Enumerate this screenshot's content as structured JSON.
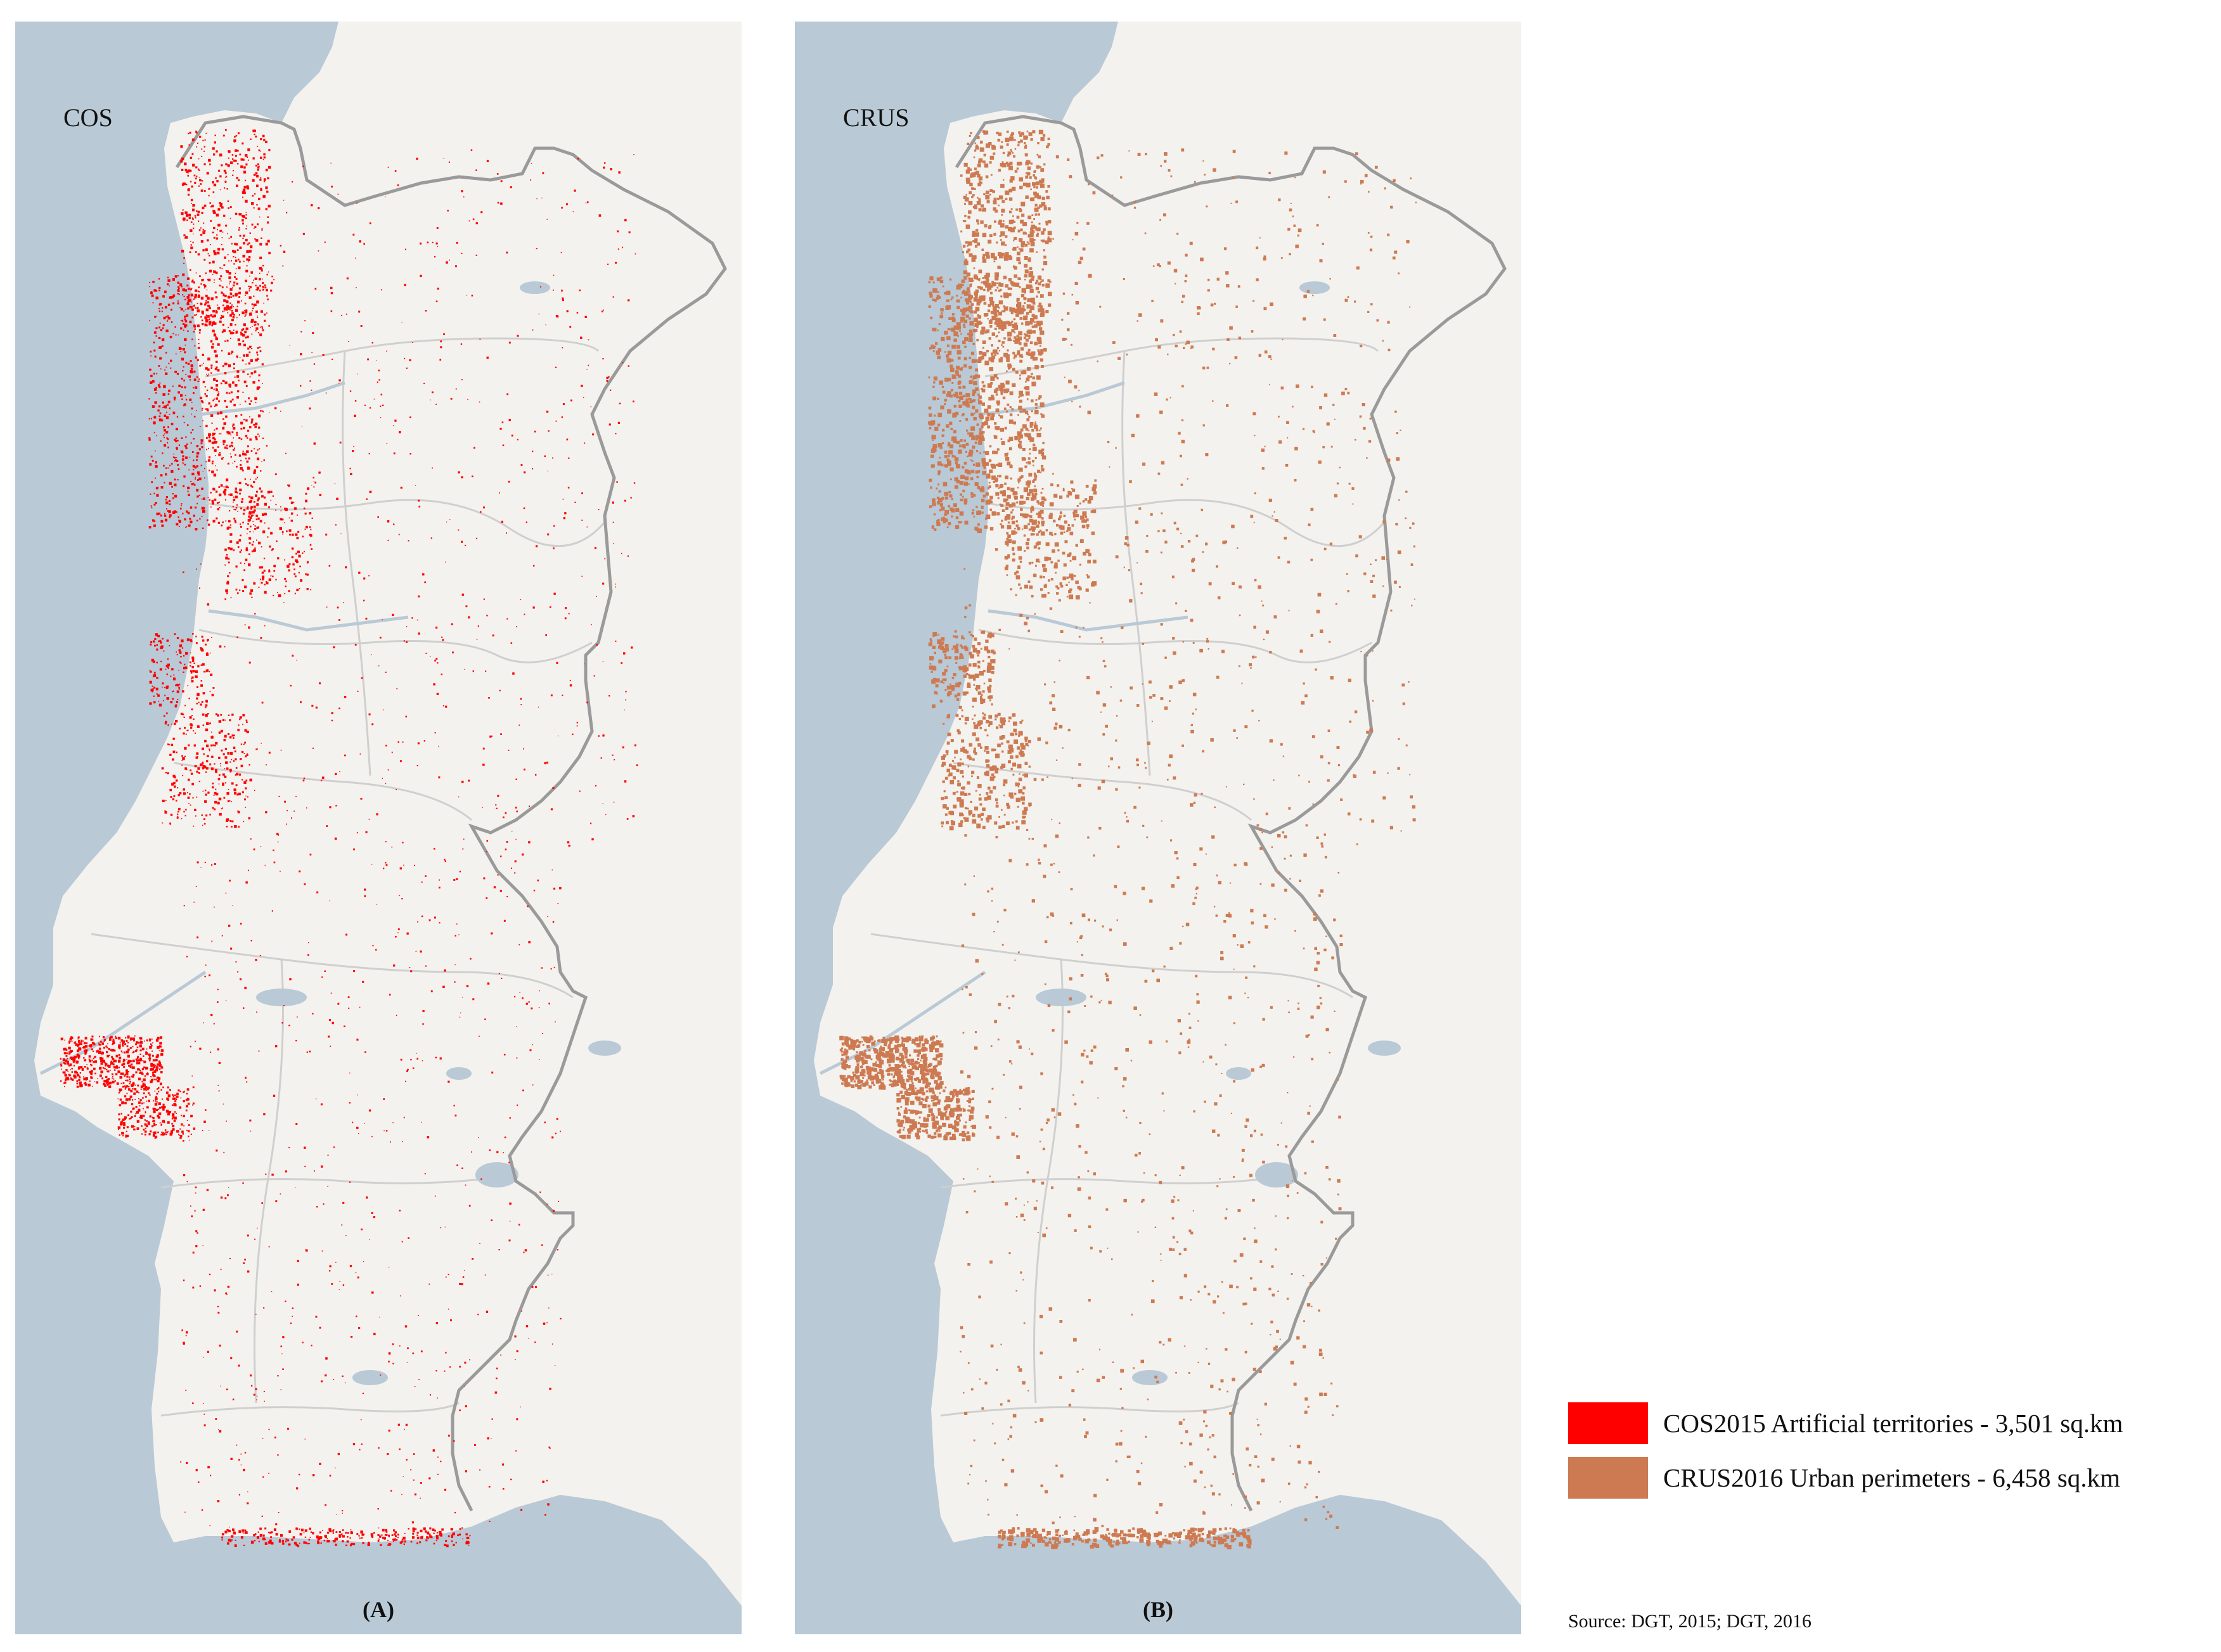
{
  "panels": [
    {
      "label": "COS",
      "caption": "(A)",
      "fill_color": "#ff0000"
    },
    {
      "label": "CRUS",
      "caption": "(B)",
      "fill_color": "#cd7a52"
    }
  ],
  "legend": [
    {
      "label": "COS2015 Artificial territories  -  3,501 sq.km",
      "color": "#ff0000"
    },
    {
      "label": "CRUS2016 Urban perimeters - 6,458 sq.km",
      "color": "#cd7a52"
    }
  ],
  "source": "Source: DGT, 2015; DGT, 2016",
  "colors": {
    "sea": "#b9c9d6",
    "land": "#f4f2ee",
    "border": "#9a9a9a",
    "district_border": "#cfcfcf",
    "water": "#b9c9d6"
  }
}
